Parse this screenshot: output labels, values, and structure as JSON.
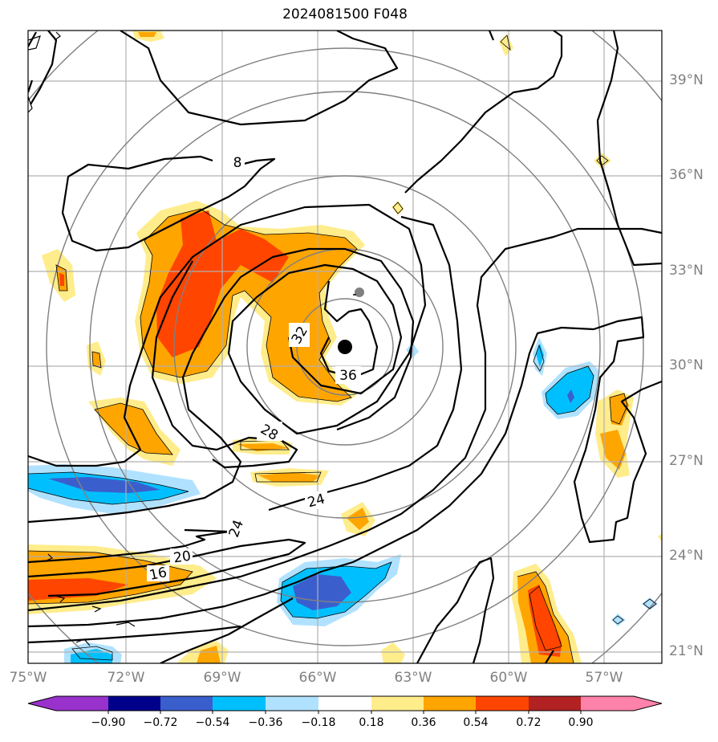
{
  "title": "2024081500 F048",
  "map": {
    "lat_labels": [
      "21°N",
      "24°N",
      "27°N",
      "30°N",
      "33°N",
      "36°N",
      "39°N"
    ],
    "lon_labels": [
      "75°W",
      "72°W",
      "69°W",
      "66°W",
      "63°W",
      "60°W",
      "57°W"
    ],
    "contour_labels": [
      "8",
      "16",
      "20",
      "24",
      "24",
      "28",
      "32",
      "36"
    ],
    "center_marker_color": "#000000",
    "secondary_marker_color": "#808080",
    "range_ring_color": "#808080"
  },
  "colorbar": {
    "tick_labels": [
      "−0.90",
      "−0.72",
      "−0.54",
      "−0.36",
      "−0.18",
      "0.18",
      "0.36",
      "0.54",
      "0.72",
      "0.90"
    ],
    "colors": [
      "#9932cc",
      "#00008b",
      "#3a5fcd",
      "#00bfff",
      "#b0e2ff",
      "#ffffff",
      "#ffec8b",
      "#ffa500",
      "#ff4500",
      "#b22222",
      "#ff82ab"
    ]
  }
}
